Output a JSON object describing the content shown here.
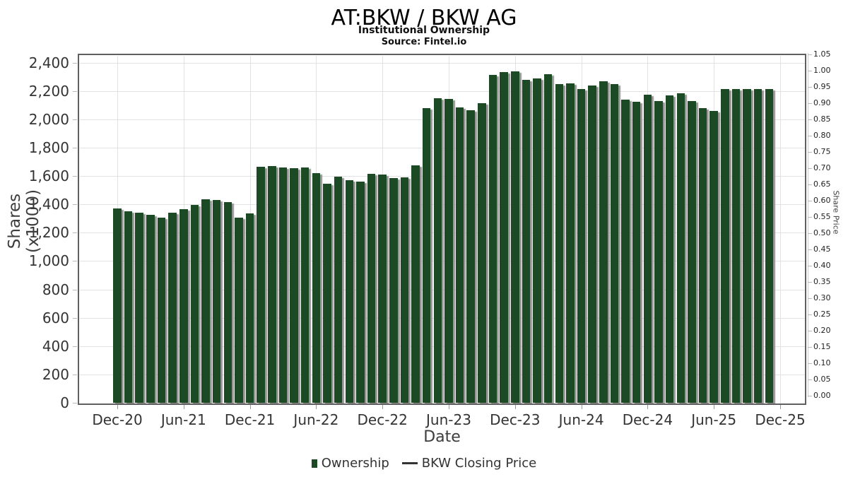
{
  "header": {
    "title": "AT:BKW / BKW AG",
    "subtitle": "Institutional Ownership",
    "source": "Source: Fintel.io"
  },
  "left_axis": {
    "label": "Shares (x1000)",
    "ticks": [
      "0",
      "200",
      "400",
      "600",
      "800",
      "1,000",
      "1,200",
      "1,400",
      "1,600",
      "1,800",
      "2,000",
      "2,200",
      "2,400"
    ]
  },
  "right_axis": {
    "label": "Share Price",
    "ticks": [
      "0.00",
      "0.05",
      "0.10",
      "0.15",
      "0.20",
      "0.25",
      "0.30",
      "0.35",
      "0.40",
      "0.45",
      "0.50",
      "0.55",
      "0.60",
      "0.65",
      "0.70",
      "0.75",
      "0.80",
      "0.85",
      "0.90",
      "0.95",
      "1.00",
      "1.05"
    ]
  },
  "x_axis": {
    "label": "Date",
    "ticks": [
      "Dec-20",
      "Jun-21",
      "Dec-21",
      "Jun-22",
      "Dec-22",
      "Jun-23",
      "Dec-23",
      "Jun-24",
      "Dec-24",
      "Jun-25",
      "Dec-25"
    ]
  },
  "legend": {
    "ownership_label": "Ownership",
    "price_label": "BKW Closing Price"
  },
  "colors": {
    "bar": "#1c4a25",
    "bar_shadow": "#949494",
    "grid": "#e2e2e2",
    "border": "#606060",
    "text": "#333333"
  },
  "chart_data": {
    "type": "bar",
    "title": "AT:BKW / BKW AG",
    "subtitle": "Institutional Ownership",
    "xlabel": "Date",
    "ylabel": "Shares (x1000)",
    "y2label": "Share Price",
    "ylim": [
      0,
      2400
    ],
    "y2lim": [
      0.0,
      1.05
    ],
    "grid": true,
    "legend_position": "bottom",
    "categories": [
      "Dec-20",
      "Jan-21",
      "Feb-21",
      "Mar-21",
      "Apr-21",
      "May-21",
      "Jun-21",
      "Jul-21",
      "Aug-21",
      "Sep-21",
      "Oct-21",
      "Nov-21",
      "Dec-21",
      "Jan-22",
      "Feb-22",
      "Mar-22",
      "Apr-22",
      "May-22",
      "Jun-22",
      "Jul-22",
      "Aug-22",
      "Sep-22",
      "Oct-22",
      "Nov-22",
      "Dec-22",
      "Jan-23",
      "Feb-23",
      "Mar-23",
      "Apr-23",
      "May-23",
      "Jun-23",
      "Jul-23",
      "Aug-23",
      "Sep-23",
      "Oct-23",
      "Nov-23",
      "Dec-23",
      "Jan-24",
      "Feb-24",
      "Mar-24",
      "Apr-24",
      "May-24",
      "Jun-24",
      "Jul-24",
      "Aug-24",
      "Sep-24",
      "Oct-24",
      "Nov-24",
      "Dec-24",
      "Jan-25",
      "Feb-25",
      "Mar-25",
      "Apr-25",
      "May-25",
      "Jun-25",
      "Jul-25",
      "Aug-25",
      "Sep-25",
      "Oct-25",
      "Nov-25"
    ],
    "series": [
      {
        "name": "Ownership",
        "axis": "left",
        "units": "thousands of shares",
        "values": [
          1373,
          1350,
          1341,
          1328,
          1308,
          1340,
          1365,
          1398,
          1436,
          1431,
          1414,
          1305,
          1338,
          1665,
          1668,
          1662,
          1655,
          1660,
          1619,
          1547,
          1594,
          1572,
          1560,
          1613,
          1610,
          1585,
          1590,
          1673,
          2080,
          2150,
          2143,
          2081,
          2065,
          2112,
          2312,
          2332,
          2339,
          2277,
          2287,
          2319,
          2249,
          2254,
          2211,
          2237,
          2266,
          2249,
          2138,
          2125,
          2173,
          2130,
          2170,
          2185,
          2128,
          2078,
          2058,
          2211,
          2212,
          2212,
          2214,
          2214
        ]
      },
      {
        "name": "BKW Closing Price",
        "axis": "right",
        "values": []
      }
    ]
  }
}
